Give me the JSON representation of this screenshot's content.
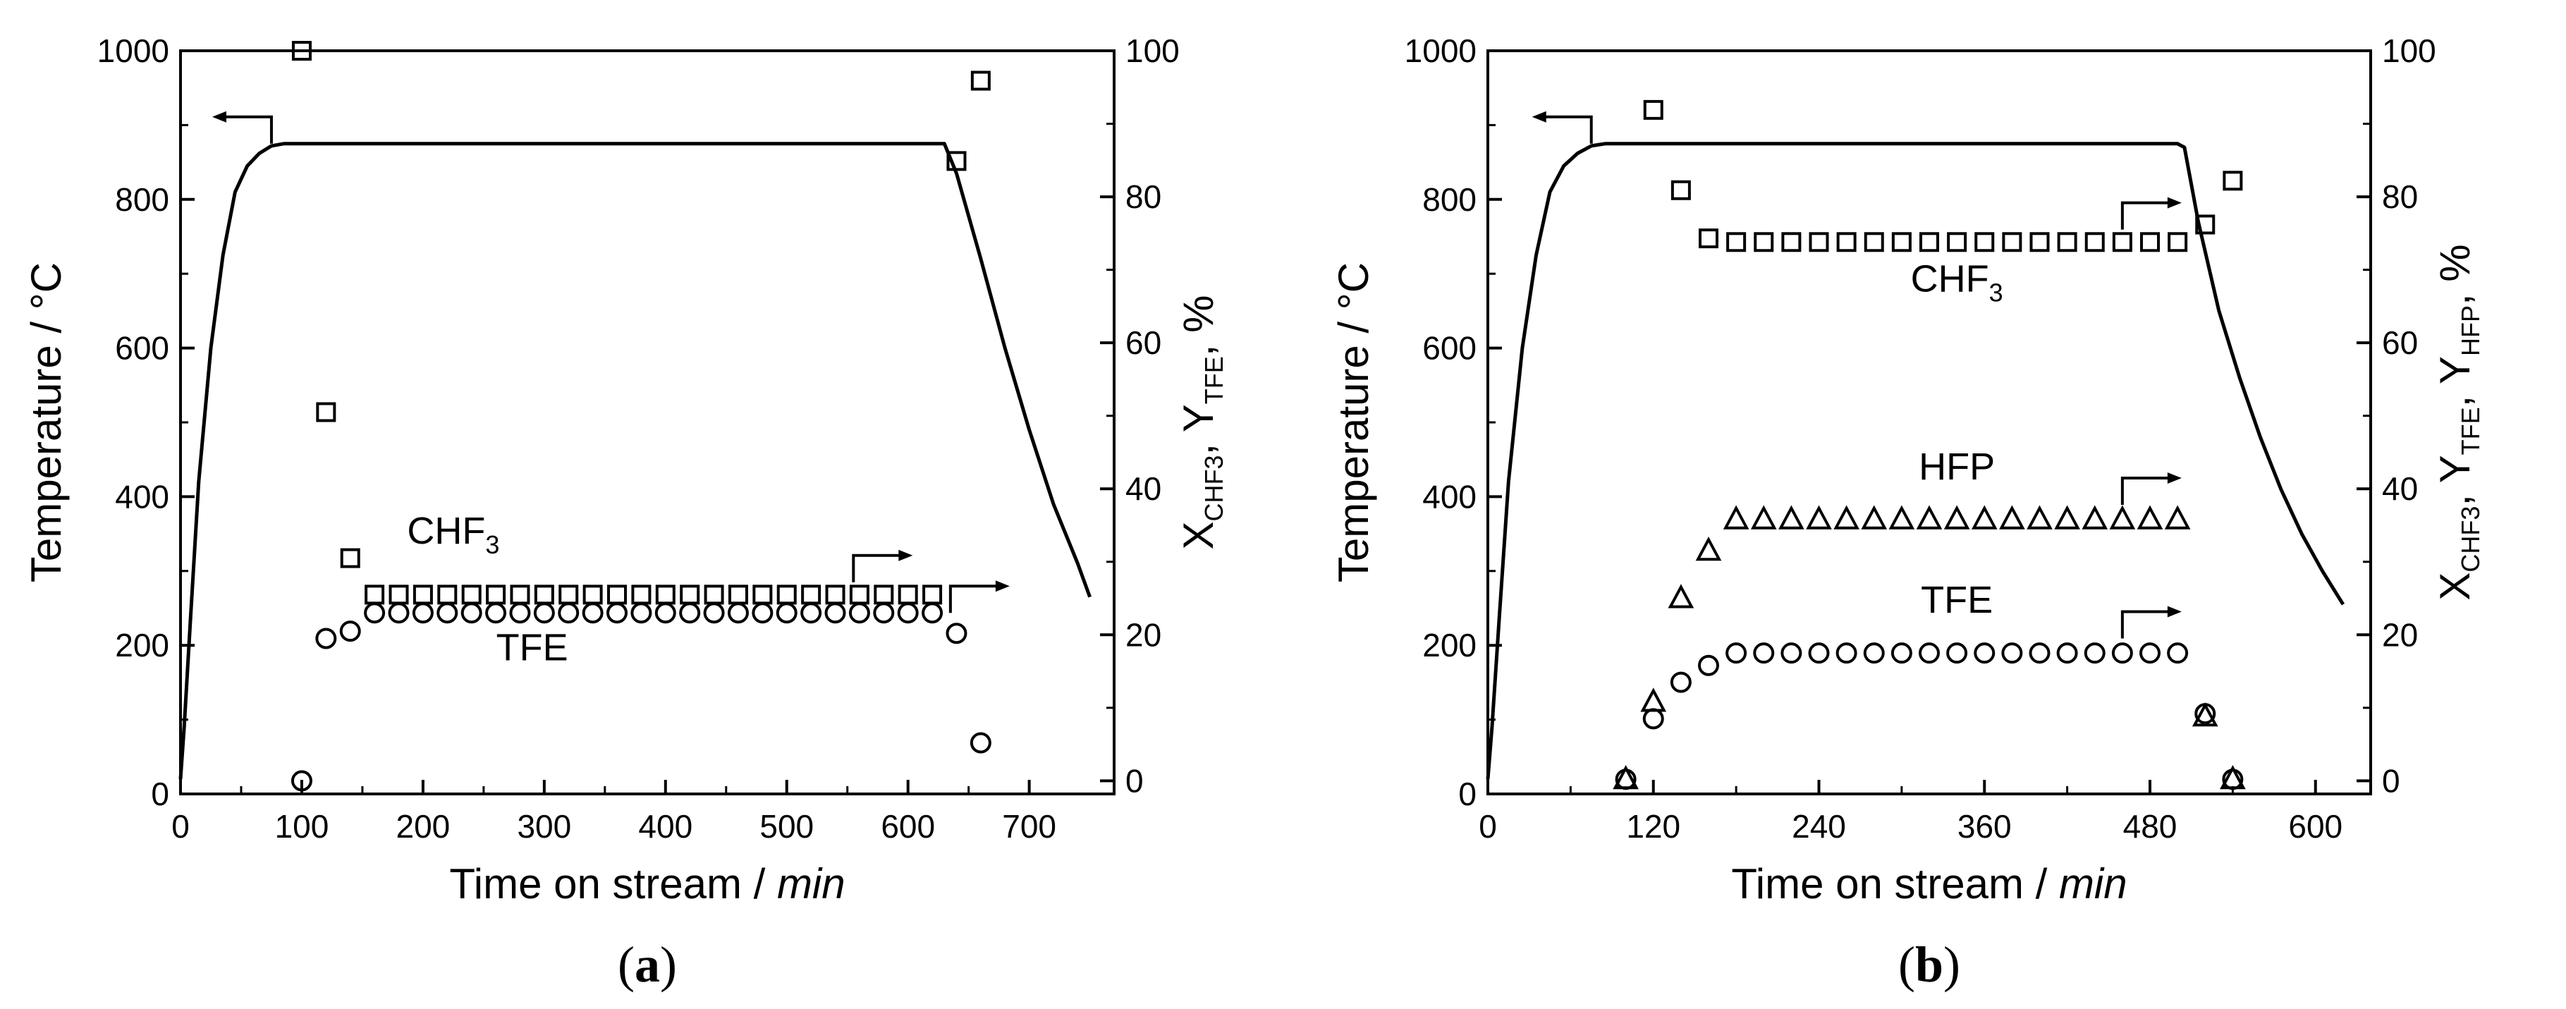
{
  "chart_data": [
    {
      "type": "line",
      "panel_label": "a",
      "xlabel": "Time on stream / ",
      "xlabel_italic": "min",
      "ylabel": "Temperature / °C",
      "y2label": {
        "x_base": "X",
        "x_sub": "CHF3",
        "sep": ", ",
        "y_base": "Y",
        "y_sub": "TFE",
        "tail": ", %"
      },
      "xlim": [
        0,
        770
      ],
      "ylim": [
        0,
        1000
      ],
      "y2lim": [
        -1.8,
        100
      ],
      "x_ticks": [
        0,
        100,
        200,
        300,
        400,
        500,
        600,
        700
      ],
      "y_ticks": [
        0,
        200,
        400,
        600,
        800,
        1000
      ],
      "y2_ticks": [
        0,
        20,
        40,
        60,
        80,
        100
      ],
      "temperature": {
        "axis": "left",
        "x": [
          0,
          3,
          8,
          15,
          25,
          35,
          45,
          55,
          65,
          75,
          85,
          100,
          200,
          300,
          400,
          500,
          600,
          630,
          640,
          660,
          680,
          700,
          720,
          740,
          750
        ],
        "y": [
          20,
          90,
          230,
          420,
          600,
          725,
          810,
          845,
          862,
          872,
          875,
          875,
          875,
          875,
          875,
          875,
          875,
          875,
          835,
          720,
          600,
          490,
          390,
          310,
          265
        ]
      },
      "series": [
        {
          "name": "CHF3",
          "label_base": "CHF",
          "label_sub": "3",
          "marker": "square",
          "axis": "right",
          "x": [
            100,
            120,
            140,
            160,
            180,
            200,
            220,
            240,
            260,
            280,
            300,
            320,
            340,
            360,
            380,
            400,
            420,
            440,
            460,
            480,
            500,
            520,
            540,
            560,
            580,
            600,
            620,
            640,
            660
          ],
          "y": [
            100,
            50.5,
            30.5,
            25.5,
            25.5,
            25.5,
            25.5,
            25.5,
            25.5,
            25.5,
            25.5,
            25.5,
            25.5,
            25.5,
            25.5,
            25.5,
            25.5,
            25.5,
            25.5,
            25.5,
            25.5,
            25.5,
            25.5,
            25.5,
            25.5,
            25.5,
            25.5,
            84.9,
            95.9
          ]
        },
        {
          "name": "TFE",
          "label_base": "TFE",
          "label_sub": "",
          "marker": "circle",
          "axis": "right",
          "x": [
            100,
            120,
            140,
            160,
            180,
            200,
            220,
            240,
            260,
            280,
            300,
            320,
            340,
            360,
            380,
            400,
            420,
            440,
            460,
            480,
            500,
            520,
            540,
            560,
            580,
            600,
            620,
            640,
            660
          ],
          "y": [
            0,
            19.5,
            20.5,
            23,
            23,
            23,
            23,
            23,
            23,
            23,
            23,
            23,
            23,
            23,
            23,
            23,
            23,
            23,
            23,
            23,
            23,
            23,
            23,
            23,
            23,
            23,
            23,
            20.2,
            5.2
          ]
        }
      ],
      "arrows": [
        {
          "x": 75,
          "y": 875,
          "axis": "left",
          "direction": "left"
        },
        {
          "x": 555,
          "y": 27.2,
          "axis": "right",
          "direction": "right"
        },
        {
          "x": 635,
          "y": 23,
          "axis": "right",
          "direction": "right"
        }
      ],
      "text_labels": [
        {
          "series": "CHF3",
          "x": 225,
          "y": 32.5,
          "axis": "right"
        },
        {
          "series": "TFE",
          "x": 290,
          "y": 16.5,
          "axis": "right"
        }
      ]
    },
    {
      "type": "line",
      "panel_label": "b",
      "xlabel": "Time on stream / ",
      "xlabel_italic": "min",
      "ylabel": "Temperature / °C",
      "y2label": {
        "x_base": "X",
        "x_sub": "CHF3",
        "sep": ", ",
        "y_base": "Y",
        "y_sub": "TFE",
        "sep2": ", ",
        "z_base": "Y",
        "z_sub": "HFP",
        "tail": ", %"
      },
      "xlim": [
        0,
        640
      ],
      "ylim": [
        0,
        1000
      ],
      "y2lim": [
        -1.8,
        100
      ],
      "x_ticks": [
        0,
        120,
        240,
        360,
        480,
        600
      ],
      "y_ticks": [
        0,
        200,
        400,
        600,
        800,
        1000
      ],
      "y2_ticks": [
        0,
        20,
        40,
        60,
        80,
        100
      ],
      "temperature": {
        "axis": "left",
        "x": [
          0,
          3,
          8,
          15,
          25,
          35,
          45,
          55,
          65,
          75,
          85,
          100,
          200,
          300,
          400,
          500,
          505,
          515,
          530,
          545,
          560,
          575,
          590,
          605,
          620
        ],
        "y": [
          20,
          90,
          230,
          420,
          600,
          725,
          810,
          845,
          862,
          872,
          875,
          875,
          875,
          875,
          875,
          875,
          870,
          770,
          650,
          560,
          480,
          410,
          350,
          300,
          255
        ]
      },
      "series": [
        {
          "name": "CHF3",
          "label_base": "CHF",
          "label_sub": "3",
          "marker": "square",
          "axis": "right",
          "x": [
            120,
            140,
            160,
            180,
            200,
            220,
            240,
            260,
            280,
            300,
            320,
            340,
            360,
            380,
            400,
            420,
            440,
            460,
            480,
            500,
            520,
            540
          ],
          "y": [
            91.9,
            80.9,
            74.3,
            73.8,
            73.8,
            73.8,
            73.8,
            73.8,
            73.8,
            73.8,
            73.8,
            73.8,
            73.8,
            73.8,
            73.8,
            73.8,
            73.8,
            73.8,
            73.8,
            73.8,
            76.2,
            82.2
          ]
        },
        {
          "name": "HFP",
          "label_base": "HFP",
          "label_sub": "",
          "marker": "triangle",
          "axis": "right",
          "x": [
            100,
            120,
            140,
            160,
            180,
            200,
            220,
            240,
            260,
            280,
            300,
            320,
            340,
            360,
            380,
            400,
            420,
            440,
            460,
            480,
            500,
            520,
            540
          ],
          "y": [
            0.2,
            10.8,
            25,
            31.5,
            35.8,
            35.8,
            35.8,
            35.8,
            35.8,
            35.8,
            35.8,
            35.8,
            35.8,
            35.8,
            35.8,
            35.8,
            35.8,
            35.8,
            35.8,
            35.8,
            35.8,
            8.8,
            0.2
          ]
        },
        {
          "name": "TFE",
          "label_base": "TFE",
          "label_sub": "",
          "marker": "circle",
          "axis": "right",
          "x": [
            100,
            120,
            140,
            160,
            180,
            200,
            220,
            240,
            260,
            280,
            300,
            320,
            340,
            360,
            380,
            400,
            420,
            440,
            460,
            480,
            500,
            520,
            540
          ],
          "y": [
            0.2,
            8.5,
            13.5,
            15.8,
            17.5,
            17.5,
            17.5,
            17.5,
            17.5,
            17.5,
            17.5,
            17.5,
            17.5,
            17.5,
            17.5,
            17.5,
            17.5,
            17.5,
            17.5,
            17.5,
            17.5,
            9.2,
            0.2
          ]
        }
      ],
      "arrows": [
        {
          "x": 75,
          "y": 875,
          "axis": "left",
          "direction": "left"
        },
        {
          "x": 460,
          "y": 75.5,
          "axis": "right",
          "direction": "right"
        },
        {
          "x": 460,
          "y": 37.8,
          "axis": "right",
          "direction": "right"
        },
        {
          "x": 460,
          "y": 19.5,
          "axis": "right",
          "direction": "right"
        }
      ],
      "text_labels": [
        {
          "series": "CHF3",
          "x": 340,
          "y": 67,
          "axis": "right"
        },
        {
          "series": "HFP",
          "x": 340,
          "y": 41.3,
          "axis": "right"
        },
        {
          "series": "TFE",
          "x": 340,
          "y": 23,
          "axis": "right"
        }
      ]
    }
  ]
}
